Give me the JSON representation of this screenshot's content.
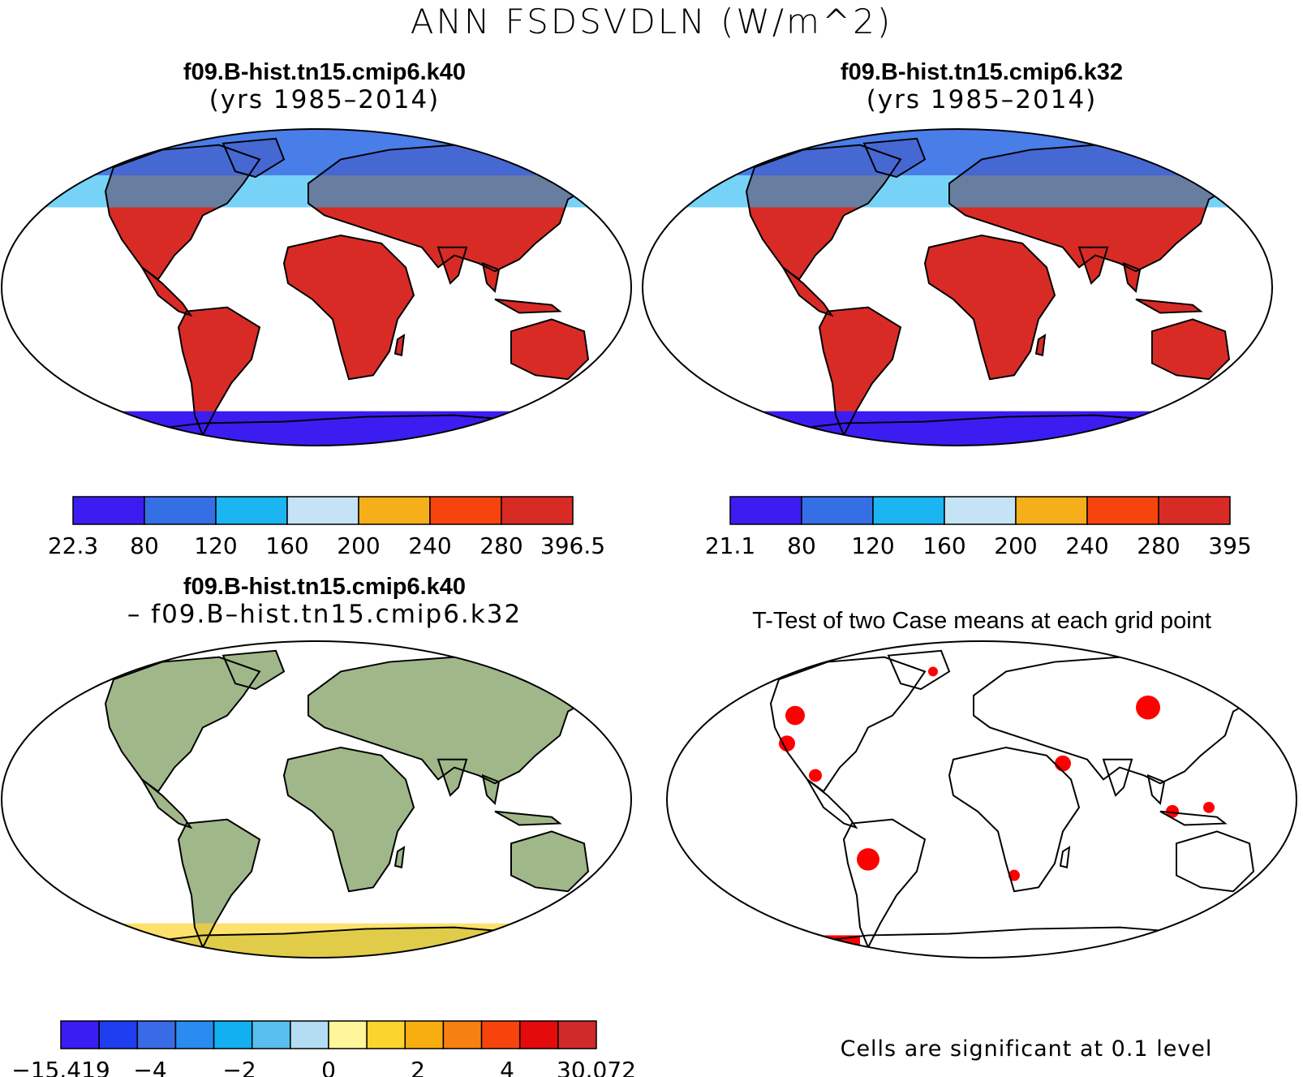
{
  "main_title": "ANN FSDSVDLN (W/m^2)",
  "panels": {
    "top_left": {
      "title": "f09.B-hist.tn15.cmip6.k40",
      "subtitle": "(yrs 1985–2014)",
      "colorbar": {
        "labels": [
          "22.3",
          "80",
          "120",
          "160",
          "200",
          "240",
          "280",
          "396.5"
        ],
        "colors": [
          "#3b1df2",
          "#356fe6",
          "#1bb5f2",
          "#c4e3f5",
          "#f7ae1b",
          "#f7440d",
          "#d92b26"
        ]
      }
    },
    "top_right": {
      "title": "f09.B-hist.tn15.cmip6.k32",
      "subtitle": "(yrs 1985–2014)",
      "colorbar": {
        "labels": [
          "21.1",
          "80",
          "120",
          "160",
          "200",
          "240",
          "280",
          "395"
        ],
        "colors": [
          "#3b1df2",
          "#356fe6",
          "#1bb5f2",
          "#c4e3f5",
          "#f7ae1b",
          "#f7440d",
          "#d92b26"
        ]
      }
    },
    "bottom_left": {
      "title": "f09.B-hist.tn15.cmip6.k40",
      "subtitle": "– f09.B–hist.tn15.cmip6.k32",
      "colorbar": {
        "labels": [
          "−15.419",
          "−4",
          "−2",
          "0",
          "2",
          "4",
          "30.072"
        ],
        "colors": [
          "#3a1df2",
          "#1e3ef0",
          "#3a6be6",
          "#2a8bf0",
          "#12b0f0",
          "#58bff0",
          "#b2ddf2",
          "#fff59a",
          "#fcd42e",
          "#f9ae0f",
          "#f78013",
          "#f7440d",
          "#e30b0b",
          "#d12a2a"
        ]
      }
    },
    "bottom_right": {
      "title": "T-Test of two Case means at each grid point",
      "note": "Cells are significant at 0.1 level"
    }
  }
}
